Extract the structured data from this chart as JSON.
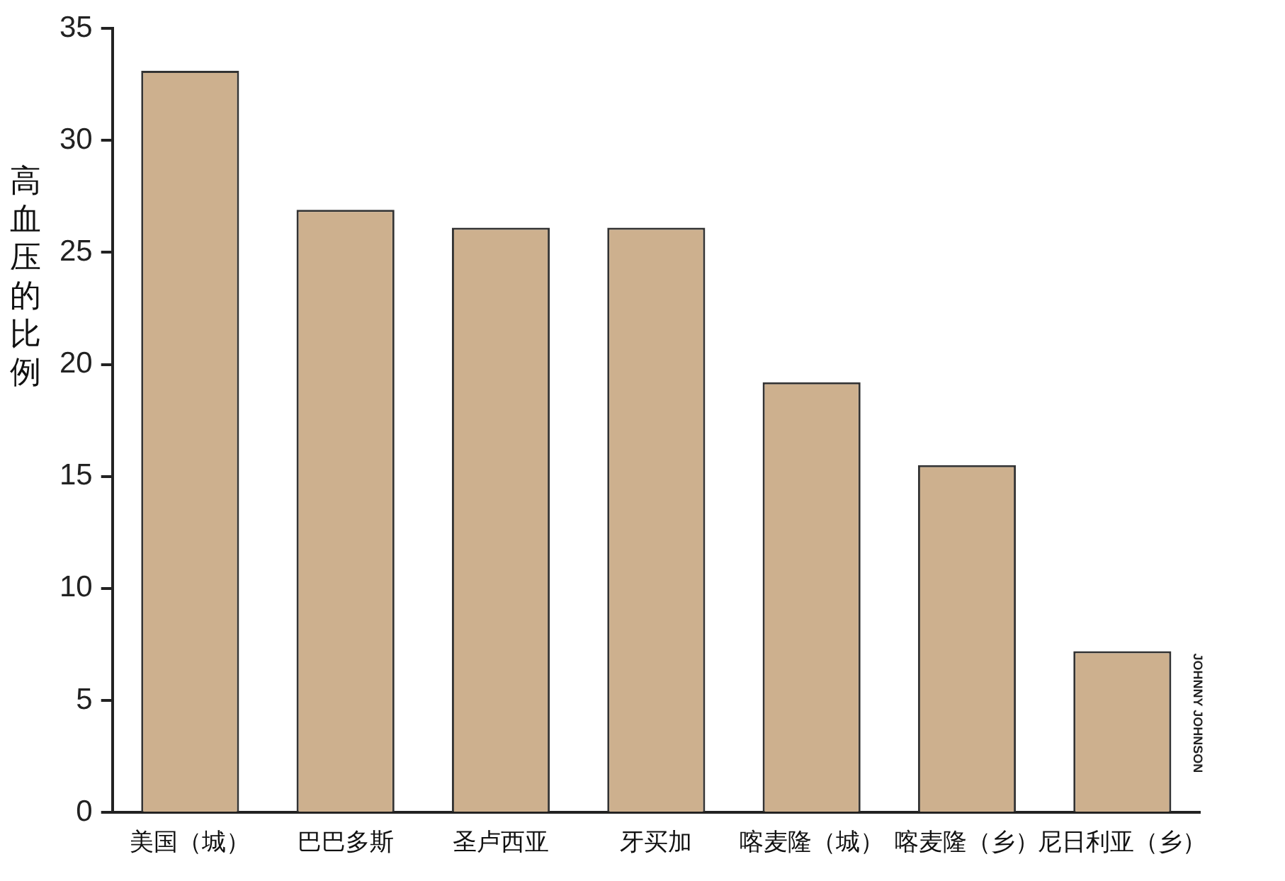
{
  "chart_data": {
    "type": "bar",
    "ylabel": "高血压的比例",
    "categories": [
      "美国（城）",
      "巴巴多斯",
      "圣卢西亚",
      "牙买加",
      "喀麦隆（城）",
      "喀麦隆（乡）",
      "尼日利亚（乡）"
    ],
    "values": [
      33.1,
      26.9,
      26.1,
      26.1,
      19.2,
      15.5,
      7.2
    ],
    "color": "#cdb08e",
    "ylim": [
      0,
      35
    ],
    "yticks": [
      0,
      5,
      10,
      15,
      20,
      25,
      30,
      35
    ],
    "grid": false,
    "legend": false,
    "annotations": [
      "JOHNNY JOHNSON"
    ]
  }
}
